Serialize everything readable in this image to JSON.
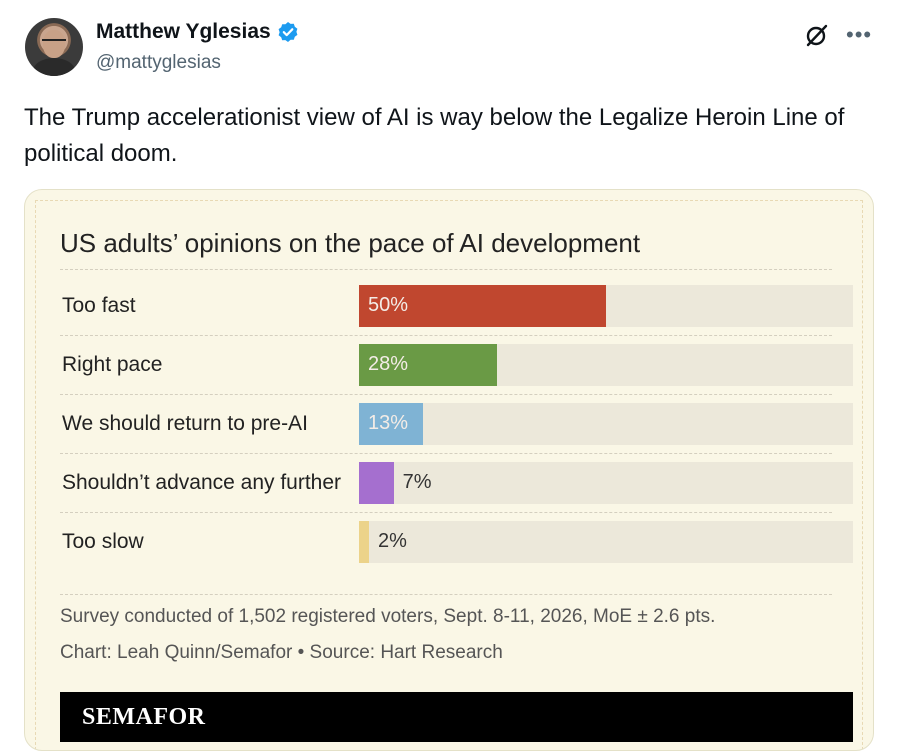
{
  "author": {
    "name": "Matthew Yglesias",
    "handle": "@mattyglesias"
  },
  "icons": {
    "verified": "verified-badge-icon",
    "grok": "grok-icon",
    "more": "more-options-icon"
  },
  "tweet": {
    "text": "The Trump accelerationist view of AI is way below the Legalize Heroin Line of political doom."
  },
  "colors": {
    "accent_verified": "#1d9bf0",
    "too_fast": "#c0472f",
    "right_pace": "#6a9a45",
    "return_pre_ai": "#7fb3d4",
    "no_further": "#a56fcf",
    "too_slow": "#ecd38a"
  },
  "chart_data": {
    "type": "bar",
    "title": "US adults’ opinions on the pace of AI development",
    "categories": [
      "Too fast",
      "Right pace",
      "We should return to pre-AI",
      "Shouldn’t advance any further",
      "Too slow"
    ],
    "values": [
      50,
      28,
      13,
      7,
      2
    ],
    "value_labels": [
      "50%",
      "28%",
      "13%",
      "7%",
      "2%"
    ],
    "ylim": [
      0,
      100
    ],
    "footnote": "Survey conducted of 1,502 registered voters, Sept. 8-11, 2026, MoE ± 2.6 pts.",
    "credit": "Chart: Leah Quinn/Semafor • Source: Hart Research",
    "brand": "SEMAFOR"
  }
}
